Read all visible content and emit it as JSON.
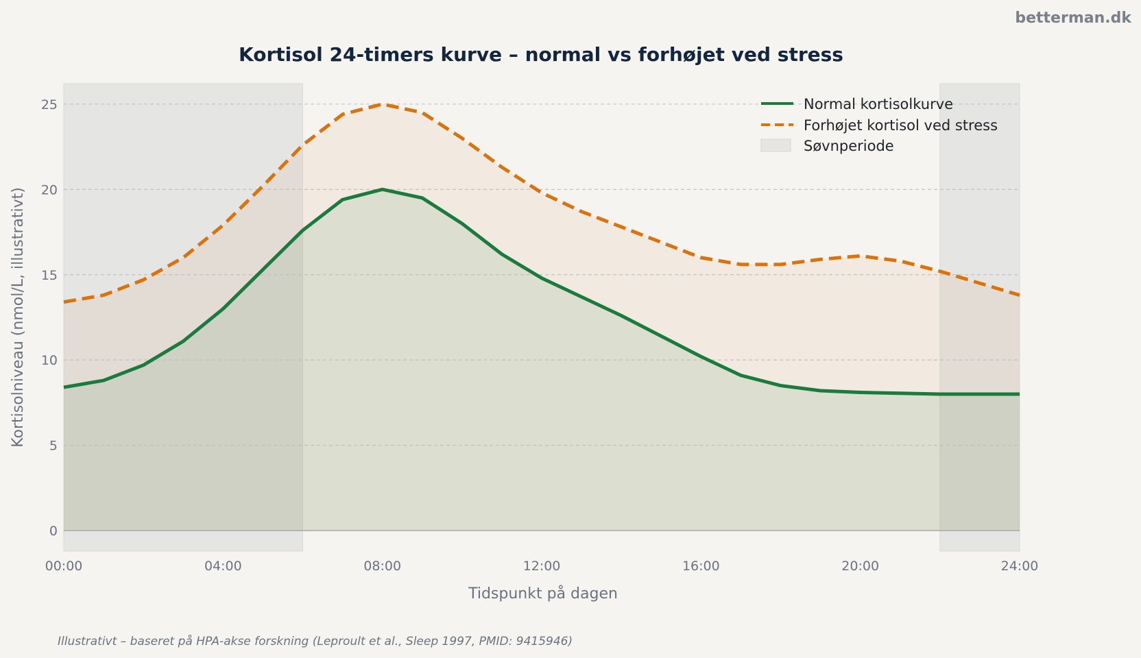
{
  "brand": "betterman.dk",
  "source_note": "Illustrativt – baseret på HPA-akse forskning (Leproult et al., Sleep 1997, PMID: 9415946)",
  "colors": {
    "background": "#f5f4f0",
    "normal": "#1b7a3e",
    "stress": "#d9730d",
    "sleep": "#e5e5e3",
    "title": "#13263f",
    "muted": "#6b7280"
  },
  "chart_data": {
    "type": "line",
    "title": "Kortisol 24-timers kurve – normal vs forhøjet ved stress",
    "xlabel": "Tidspunkt på dagen",
    "ylabel": "Kortisolniveau (nmol/L, illustrativt)",
    "x_unit": "hours",
    "xlim": [
      0,
      24
    ],
    "ylim": [
      -1.2,
      26.2
    ],
    "xticks": [
      0,
      4,
      8,
      12,
      16,
      20,
      24
    ],
    "xtick_labels": [
      "00:00",
      "04:00",
      "08:00",
      "12:00",
      "16:00",
      "20:00",
      "24:00"
    ],
    "yticks": [
      0,
      5,
      10,
      15,
      20,
      25
    ],
    "ytick_labels": [
      "0",
      "5",
      "10",
      "15",
      "20",
      "25"
    ],
    "grid": "horizontal dashed",
    "legend_position": "top-right",
    "x": [
      0,
      1,
      2,
      3,
      4,
      5,
      6,
      7,
      8,
      9,
      10,
      11,
      12,
      13,
      14,
      15,
      16,
      17,
      18,
      19,
      20,
      21,
      22,
      23,
      24
    ],
    "series": [
      {
        "name": "Normal kortisolkurve",
        "style": "solid",
        "color": "#1b7a3e",
        "filled": true,
        "values": [
          8.4,
          8.8,
          9.7,
          11.1,
          13.0,
          15.3,
          17.6,
          19.4,
          20.0,
          19.5,
          18.0,
          16.2,
          14.8,
          13.7,
          12.6,
          11.4,
          10.2,
          9.1,
          8.5,
          8.2,
          8.1,
          8.05,
          8.0,
          8.0,
          8.0
        ]
      },
      {
        "name": "Forhøjet kortisol ved stress",
        "style": "dashed",
        "color": "#d9730d",
        "filled": true,
        "values": [
          13.4,
          13.8,
          14.7,
          16.0,
          17.9,
          20.2,
          22.6,
          24.4,
          25.0,
          24.5,
          23.0,
          21.3,
          19.8,
          18.7,
          17.8,
          16.9,
          16.0,
          15.6,
          15.6,
          15.9,
          16.1,
          15.8,
          15.2,
          14.5,
          13.8
        ]
      }
    ],
    "shaded_regions": [
      {
        "name": "Søvnperiode",
        "x_ranges": [
          [
            0,
            6
          ],
          [
            22,
            24
          ]
        ],
        "color": "#e5e5e3"
      }
    ]
  }
}
